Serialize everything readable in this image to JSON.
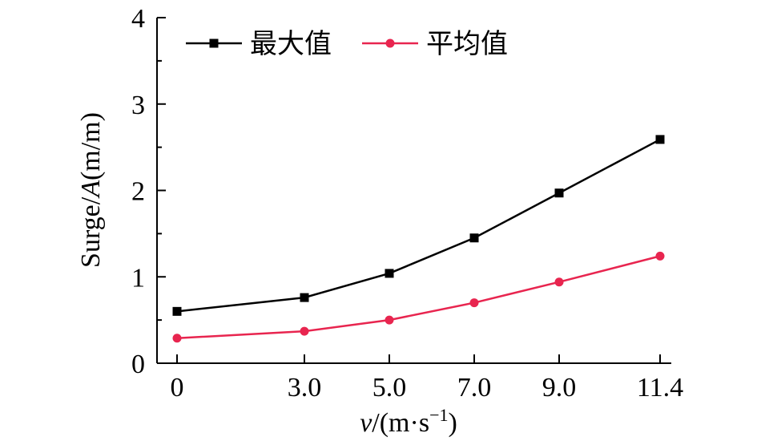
{
  "chart_data": {
    "type": "line",
    "title": "",
    "xlabel_italic": "v",
    "xlabel_unit": "/(m·s",
    "xlabel_sup": "−1",
    "xlabel_close": ")",
    "ylabel_prefix": "Surge/",
    "ylabel_italic": "A",
    "ylabel_unit": "(m/m)",
    "x": [
      0,
      3.0,
      5.0,
      7.0,
      9.0,
      11.4
    ],
    "x_tick_labels": [
      "0",
      "3.0",
      "5.0",
      "7.0",
      "9.0",
      "11.4"
    ],
    "y_ticks": [
      0,
      1,
      2,
      3,
      4
    ],
    "y_tick_labels": [
      "0",
      "1",
      "2",
      "3",
      "4"
    ],
    "ylim": [
      0,
      4
    ],
    "grid": false,
    "legend_position": "top-left",
    "series": [
      {
        "name": "最大值",
        "color": "#000000",
        "marker": "square",
        "values": [
          0.6,
          0.76,
          1.04,
          1.45,
          1.97,
          2.59
        ]
      },
      {
        "name": "平均值",
        "color": "#e8254f",
        "marker": "circle",
        "values": [
          0.29,
          0.37,
          0.5,
          0.7,
          0.94,
          1.24
        ]
      }
    ]
  }
}
